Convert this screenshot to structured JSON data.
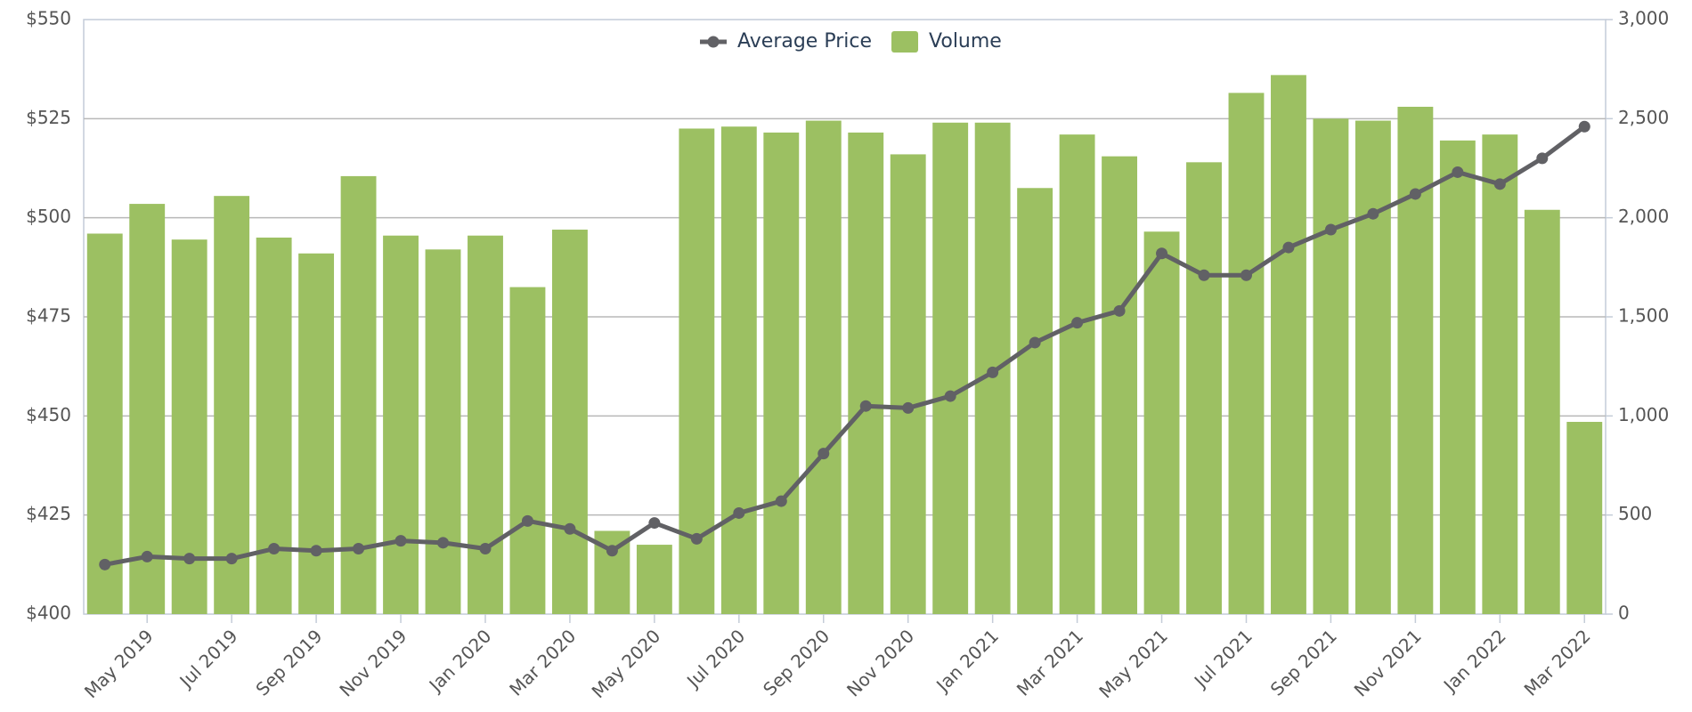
{
  "chart_data": {
    "type": "combo",
    "categories": [
      null,
      "May 2019",
      null,
      "Jul 2019",
      null,
      "Sep 2019",
      null,
      "Nov 2019",
      null,
      "Jan 2020",
      null,
      "Mar 2020",
      null,
      "May 2020",
      null,
      "Jul 2020",
      null,
      "Sep 2020",
      null,
      "Nov 2020",
      null,
      "Jan 2021",
      null,
      "Mar 2021",
      null,
      "May 2021",
      null,
      "Jul 2021",
      null,
      "Sep 2021",
      null,
      "Nov 2021",
      null,
      "Jan 2022",
      null,
      "Mar 2022"
    ],
    "series": [
      {
        "name": "Average Price",
        "type": "line",
        "axis": "y",
        "color": "#616165",
        "values": [
          412.5,
          414.5,
          414,
          414,
          416.5,
          416,
          416.5,
          418.5,
          418,
          416.5,
          423.5,
          421.5,
          416,
          423,
          419,
          425.5,
          428.5,
          440.5,
          452.5,
          452,
          455,
          461,
          468.5,
          473.5,
          476.5,
          491,
          485.5,
          485.5,
          492.5,
          497,
          501,
          506,
          511.5,
          508.5,
          515,
          523
        ]
      },
      {
        "name": "Volume",
        "type": "bar",
        "axis": "y2",
        "color": "#9cc062",
        "values": [
          1920,
          2070,
          1890,
          2110,
          1900,
          1820,
          2210,
          1910,
          1840,
          1910,
          1650,
          1940,
          420,
          350,
          2450,
          2460,
          2430,
          2490,
          2430,
          2320,
          2480,
          2480,
          2150,
          2420,
          2310,
          1930,
          2280,
          2630,
          2720,
          2500,
          2490,
          2560,
          2390,
          2420,
          2040,
          970
        ]
      }
    ],
    "ylim": [
      400,
      550
    ],
    "yticks": [
      {
        "value": 400,
        "label": "$400"
      },
      {
        "value": 425,
        "label": "$425"
      },
      {
        "value": 450,
        "label": "$450"
      },
      {
        "value": 475,
        "label": "$475"
      },
      {
        "value": 500,
        "label": "$500"
      },
      {
        "value": 525,
        "label": "$525"
      },
      {
        "value": 550,
        "label": "$550"
      }
    ],
    "y2lim": [
      0,
      3000
    ],
    "y2ticks": [
      0,
      500,
      {
        "value": 1000,
        "label": "1,000"
      },
      {
        "value": 1500,
        "label": "1,500"
      },
      {
        "value": 2000,
        "label": "2,000"
      },
      {
        "value": 2500,
        "label": "2,500"
      },
      {
        "value": 3000,
        "label": "3,000"
      }
    ],
    "grid": true,
    "legend": "top"
  }
}
